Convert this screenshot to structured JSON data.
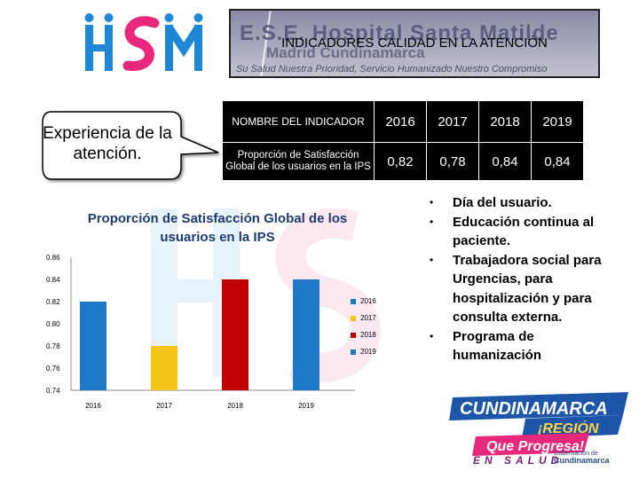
{
  "logo": {
    "text": "HSM",
    "colors": {
      "h": "#1e88d6",
      "s": "#e8287c",
      "m": "#1e88d6"
    }
  },
  "banner": {
    "hospital": "E.S.E. Hospital Santa Matilde",
    "place": "Madrid Cundinamarca",
    "motto": "Su Salud Nuestra Prioridad, Servicio Humanizado Nuestro Compromiso",
    "title": "INDICADORES CALIDAD EN LA ATENCIÓN"
  },
  "callout": {
    "text": "Experiencia de la atención."
  },
  "indicator_table": {
    "header": {
      "name": "NOMBRE DEL INDICADOR",
      "years": [
        "2016",
        "2017",
        "2018",
        "2019"
      ]
    },
    "row": {
      "name": "Proporción de Satisfacción Global de los usuarios en la IPS",
      "values": [
        "0,82",
        "0,78",
        "0,84",
        "0,84"
      ]
    }
  },
  "bullets": [
    "Día del usuario.",
    "Educación continua al paciente.",
    "Trabajadora social para Urgencias, para hospitalización y para consulta externa.",
    "Programa de humanización"
  ],
  "chart_data": {
    "type": "bar",
    "title": "Proporción de Satisfacción Global de los usuarios en la IPS",
    "categories": [
      "2016",
      "2017",
      "2018",
      "2019"
    ],
    "series": [
      {
        "name": "2016",
        "color": "#1f77c8",
        "values": [
          0.82,
          null,
          null,
          null
        ]
      },
      {
        "name": "2017",
        "color": "#f5c518",
        "values": [
          null,
          0.78,
          null,
          null
        ]
      },
      {
        "name": "2018",
        "color": "#c00000",
        "values": [
          null,
          null,
          0.84,
          null
        ]
      },
      {
        "name": "2019",
        "color": "#1f77c8",
        "values": [
          null,
          null,
          null,
          0.84
        ]
      }
    ],
    "ylim": [
      0.74,
      0.86
    ],
    "yticks": [
      "0.74",
      "0.76",
      "0.78",
      "0.80",
      "0.82",
      "0.84",
      "0.86"
    ],
    "legend_position": "right",
    "grid": false
  },
  "footer": {
    "brand": "CUNDINAMARCA",
    "region": "¡REGIÓN",
    "slogan": "Que Progresa!",
    "sector": "EN SALUD",
    "gov_small": "Gobernación de",
    "gov_big": "Cundinamarca"
  }
}
